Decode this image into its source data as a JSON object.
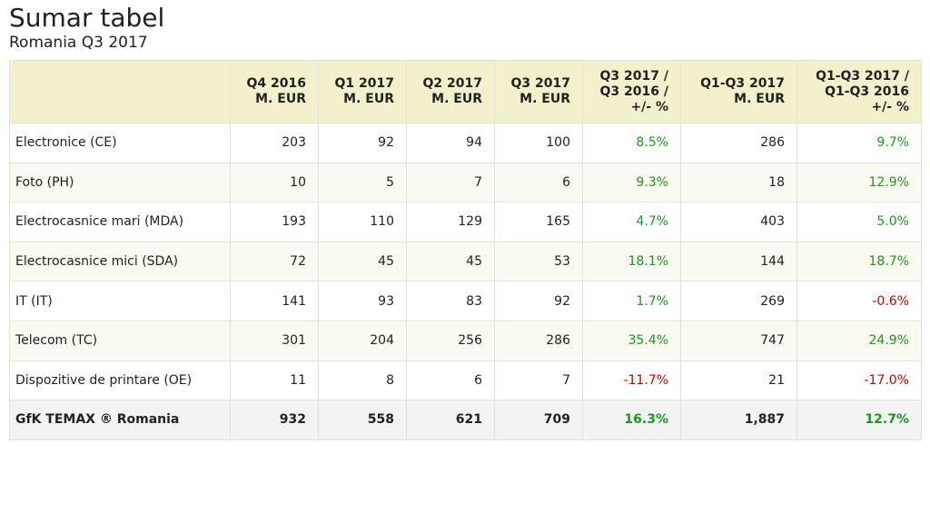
{
  "title": "Sumar tabel",
  "subtitle": "Romania Q3 2017",
  "colors": {
    "header_bg": "#f2f1cc",
    "alt_row_bg": "#fafaf0",
    "total_row_bg": "#f3f3f3",
    "positive": "#1a9a1a",
    "negative": "#d40000"
  },
  "chart_data": {
    "type": "table",
    "title": "Sumar tabel",
    "subtitle": "Romania Q3 2017",
    "columns": [
      {
        "key": "category",
        "lines": [
          ""
        ]
      },
      {
        "key": "q4_2016",
        "lines": [
          "Q4 2016",
          "M. EUR"
        ]
      },
      {
        "key": "q1_2017",
        "lines": [
          "Q1 2017",
          "M. EUR"
        ]
      },
      {
        "key": "q2_2017",
        "lines": [
          "Q2 2017",
          "M. EUR"
        ]
      },
      {
        "key": "q3_2017",
        "lines": [
          "Q3 2017",
          "M. EUR"
        ]
      },
      {
        "key": "q3_yoy",
        "lines": [
          "Q3 2017 /",
          "Q3 2016 /",
          "+/- %"
        ]
      },
      {
        "key": "q1q3_2017",
        "lines": [
          "Q1-Q3 2017",
          "M. EUR"
        ]
      },
      {
        "key": "q1q3_yoy",
        "lines": [
          "Q1-Q3 2017 /",
          "Q1-Q3 2016",
          "+/- %"
        ]
      }
    ],
    "rows": [
      {
        "category": "Electronice (CE)",
        "q4_2016": "203",
        "q1_2017": "92",
        "q2_2017": "94",
        "q3_2017": "100",
        "q3_yoy": "8.5%",
        "q1q3_2017": "286",
        "q1q3_yoy": "9.7%"
      },
      {
        "category": "Foto (PH)",
        "q4_2016": "10",
        "q1_2017": "5",
        "q2_2017": "7",
        "q3_2017": "6",
        "q3_yoy": "9.3%",
        "q1q3_2017": "18",
        "q1q3_yoy": "12.9%"
      },
      {
        "category": "Electrocasnice mari (MDA)",
        "q4_2016": "193",
        "q1_2017": "110",
        "q2_2017": "129",
        "q3_2017": "165",
        "q3_yoy": "4.7%",
        "q1q3_2017": "403",
        "q1q3_yoy": "5.0%"
      },
      {
        "category": "Electrocasnice mici (SDA)",
        "q4_2016": "72",
        "q1_2017": "45",
        "q2_2017": "45",
        "q3_2017": "53",
        "q3_yoy": "18.1%",
        "q1q3_2017": "144",
        "q1q3_yoy": "18.7%"
      },
      {
        "category": "IT (IT)",
        "q4_2016": "141",
        "q1_2017": "93",
        "q2_2017": "83",
        "q3_2017": "92",
        "q3_yoy": "1.7%",
        "q1q3_2017": "269",
        "q1q3_yoy": "-0.6%"
      },
      {
        "category": "Telecom (TC)",
        "q4_2016": "301",
        "q1_2017": "204",
        "q2_2017": "256",
        "q3_2017": "286",
        "q3_yoy": "35.4%",
        "q1q3_2017": "747",
        "q1q3_yoy": "24.9%"
      },
      {
        "category": "Dispozitive de printare (OE)",
        "q4_2016": "11",
        "q1_2017": "8",
        "q2_2017": "6",
        "q3_2017": "7",
        "q3_yoy": "-11.7%",
        "q1q3_2017": "21",
        "q1q3_yoy": "-17.0%"
      }
    ],
    "total_row": {
      "category": "GfK TEMAX ® Romania",
      "q4_2016": "932",
      "q1_2017": "558",
      "q2_2017": "621",
      "q3_2017": "709",
      "q3_yoy": "16.3%",
      "q1q3_2017": "1,887",
      "q1q3_yoy": "12.7%"
    }
  }
}
